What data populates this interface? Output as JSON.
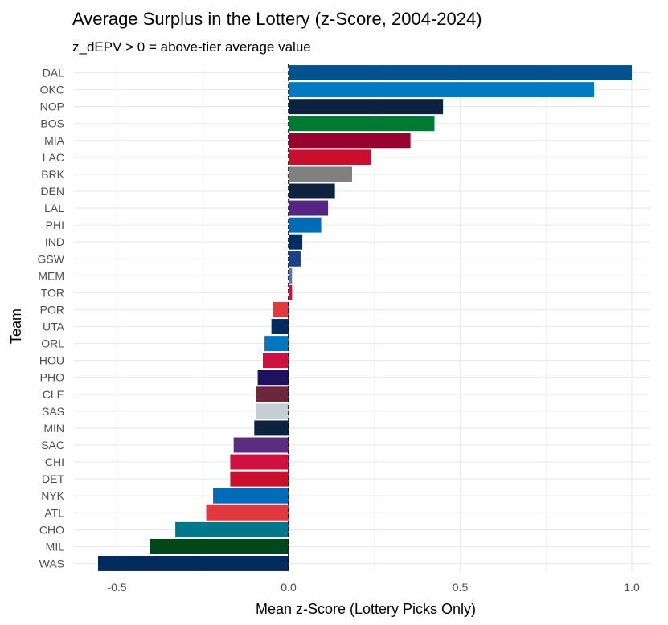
{
  "chart_data": {
    "type": "bar",
    "orientation": "horizontal",
    "title": "Average Surplus in the Lottery (z-Score, 2004-2024)",
    "subtitle": "z_dEPV > 0 = above-tier average value",
    "xlabel": "Mean z-Score (Lottery Picks Only)",
    "ylabel": "Team",
    "xlim": [
      -0.55,
      1.0
    ],
    "xticks": [
      -0.5,
      0.0,
      0.5,
      1.0
    ],
    "xtick_labels": [
      "-0.5",
      "0.0",
      "0.5",
      "1.0"
    ],
    "grid": true,
    "reference_line": 0,
    "categories": [
      "DAL",
      "OKC",
      "NOP",
      "BOS",
      "MIA",
      "LAC",
      "BRK",
      "DEN",
      "LAL",
      "PHI",
      "IND",
      "GSW",
      "MEM",
      "TOR",
      "POR",
      "UTA",
      "ORL",
      "HOU",
      "PHO",
      "CLE",
      "SAS",
      "MIN",
      "SAC",
      "CHI",
      "DET",
      "NYK",
      "ATL",
      "CHO",
      "MIL",
      "WAS"
    ],
    "values": [
      1.0,
      0.89,
      0.45,
      0.425,
      0.355,
      0.24,
      0.185,
      0.135,
      0.115,
      0.095,
      0.04,
      0.035,
      0.01,
      0.01,
      -0.045,
      -0.05,
      -0.07,
      -0.075,
      -0.09,
      -0.095,
      -0.095,
      -0.1,
      -0.16,
      -0.17,
      -0.17,
      -0.22,
      -0.24,
      -0.33,
      -0.405,
      -0.555
    ],
    "colors": [
      "#00538C",
      "#007AC1",
      "#0C2340",
      "#007A33",
      "#98002E",
      "#C8102E",
      "#808080",
      "#0E2240",
      "#552583",
      "#006BB6",
      "#002D62",
      "#1D428A",
      "#5D76A9",
      "#CE1141",
      "#E03A3E",
      "#002B5C",
      "#0077C0",
      "#CE1141",
      "#1D1160",
      "#6F263D",
      "#C4CED4",
      "#0C2340",
      "#5A2D81",
      "#CE1141",
      "#C8102E",
      "#006BB6",
      "#E03A3E",
      "#00788C",
      "#00471B",
      "#002B5C"
    ]
  }
}
